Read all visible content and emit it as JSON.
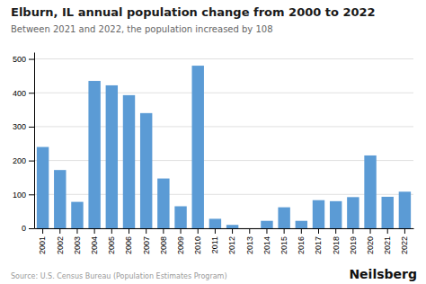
{
  "chart_data": {
    "type": "bar",
    "title": "Elburn, IL annual population change from 2000 to 2022",
    "subtitle": "Between 2021 and 2022, the population increased by 108",
    "annotations": [
      "Source: U.S. Census Bureau (Population Estimates Program)",
      "Neilsberg"
    ],
    "categories": [
      "2001",
      "2002",
      "2003",
      "2004",
      "2005",
      "2006",
      "2007",
      "2008",
      "2009",
      "2010",
      "2011",
      "2012",
      "2013",
      "2014",
      "2015",
      "2016",
      "2017",
      "2018",
      "2019",
      "2020",
      "2021",
      "2022"
    ],
    "values": [
      240,
      172,
      78,
      435,
      422,
      393,
      340,
      147,
      65,
      480,
      28,
      10,
      0,
      22,
      62,
      22,
      83,
      80,
      92,
      215,
      93,
      108
    ],
    "color": "#5b9bd5",
    "ylim": [
      0,
      520
    ],
    "yticks": [
      0,
      100,
      200,
      300,
      400,
      500
    ],
    "grid": true
  }
}
